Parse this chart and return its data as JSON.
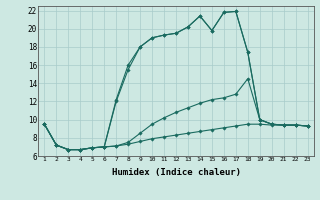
{
  "xlabel": "Humidex (Indice chaleur)",
  "xlim": [
    0.5,
    23.5
  ],
  "ylim": [
    6,
    22.5
  ],
  "yticks": [
    6,
    8,
    10,
    12,
    14,
    16,
    18,
    20,
    22
  ],
  "xticks": [
    1,
    2,
    3,
    4,
    5,
    6,
    7,
    8,
    9,
    10,
    11,
    12,
    13,
    14,
    15,
    16,
    17,
    18,
    19,
    20,
    21,
    22,
    23
  ],
  "background_color": "#cde8e2",
  "grid_color": "#a8ccca",
  "line_color": "#1a6b60",
  "line_bottom": [
    9.5,
    7.2,
    6.7,
    6.7,
    6.9,
    7.0,
    7.1,
    7.3,
    7.6,
    7.9,
    8.1,
    8.3,
    8.5,
    8.7,
    8.9,
    9.1,
    9.3,
    9.5,
    9.5,
    9.4,
    9.4,
    9.4,
    9.3
  ],
  "line_mid": [
    9.5,
    7.2,
    6.7,
    6.7,
    6.9,
    7.0,
    7.1,
    7.5,
    8.5,
    9.5,
    10.2,
    10.8,
    11.3,
    11.8,
    12.2,
    12.4,
    12.8,
    14.5,
    10.0,
    9.5,
    9.4,
    9.4,
    9.3
  ],
  "line_top1": [
    9.5,
    7.2,
    6.7,
    6.7,
    6.9,
    7.0,
    12.0,
    15.5,
    18.0,
    19.0,
    19.3,
    19.5,
    20.2,
    21.4,
    19.8,
    21.8,
    21.9,
    17.4,
    10.0,
    9.5,
    9.4,
    9.4,
    9.3
  ],
  "line_top2": [
    9.5,
    7.2,
    6.7,
    6.7,
    6.9,
    7.0,
    12.2,
    16.0,
    18.0,
    19.0,
    19.3,
    19.5,
    20.2,
    21.4,
    19.8,
    21.8,
    21.9,
    17.4,
    10.0,
    9.5,
    9.4,
    9.4,
    9.3
  ]
}
